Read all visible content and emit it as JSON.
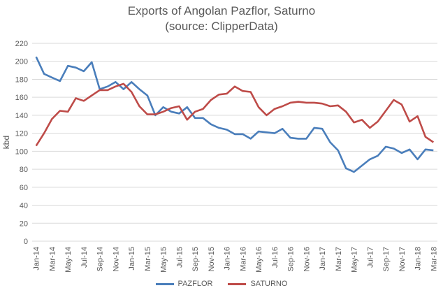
{
  "chart_data": {
    "type": "line",
    "title": "Exports of Angolan Pazflor, Saturno",
    "subtitle": "(source: ClipperData)",
    "ylabel": "kbd",
    "xlabel": "",
    "ylim": [
      0,
      220
    ],
    "yticks": [
      "0",
      "20",
      "40",
      "60",
      "80",
      "100",
      "120",
      "140",
      "160",
      "180",
      "200",
      "220"
    ],
    "x": [
      "Jan-14",
      "Feb-14",
      "Mar-14",
      "Apr-14",
      "May-14",
      "Jun-14",
      "Jul-14",
      "Aug-14",
      "Sep-14",
      "Oct-14",
      "Nov-14",
      "Dec-14",
      "Jan-15",
      "Feb-15",
      "Mar-15",
      "Apr-15",
      "May-15",
      "Jun-15",
      "Jul-15",
      "Aug-15",
      "Sep-15",
      "Oct-15",
      "Nov-15",
      "Dec-15",
      "Jan-16",
      "Feb-16",
      "Mar-16",
      "Apr-16",
      "May-16",
      "Jun-16",
      "Jul-16",
      "Aug-16",
      "Sep-16",
      "Oct-16",
      "Nov-16",
      "Dec-16",
      "Jan-17",
      "Feb-17",
      "Mar-17",
      "Apr-17",
      "May-17",
      "Jun-17",
      "Jul-17",
      "Aug-17",
      "Sep-17",
      "Oct-17",
      "Nov-17",
      "Dec-17",
      "Jan-18",
      "Feb-18",
      "Mar-18"
    ],
    "xtick_labels": [
      "Jan-14",
      "",
      "Mar-14",
      "",
      "May-14",
      "",
      "Jul-14",
      "",
      "Sep-14",
      "",
      "Nov-14",
      "",
      "Jan-15",
      "",
      "Mar-15",
      "",
      "May-15",
      "",
      "Jul-15",
      "",
      "Sep-15",
      "",
      "Nov-15",
      "",
      "Jan-16",
      "",
      "Mar-16",
      "",
      "May-16",
      "",
      "Jul-16",
      "",
      "Sep-16",
      "",
      "Nov-16",
      "",
      "Jan-17",
      "",
      "Mar-17",
      "",
      "May-17",
      "",
      "Jul-17",
      "",
      "Sep-17",
      "",
      "Nov-17",
      "",
      "Jan-18",
      "",
      "Mar-18"
    ],
    "series": [
      {
        "name": "PAZFLOR",
        "color": "#4a7ebb",
        "values": [
          205,
          186,
          182,
          178,
          195,
          193,
          189,
          199,
          169,
          172,
          177,
          169,
          177,
          169,
          162,
          140,
          149,
          144,
          142,
          149,
          137,
          137,
          130,
          126,
          124,
          119,
          119,
          114,
          122,
          121,
          120,
          125,
          115,
          114,
          114,
          126,
          125,
          110,
          101,
          81,
          77,
          84,
          91,
          95,
          105,
          103,
          98,
          102,
          91,
          102,
          101
        ]
      },
      {
        "name": "SATURNO",
        "color": "#be4b48",
        "values": [
          106,
          120,
          136,
          145,
          144,
          159,
          156,
          162,
          168,
          168,
          172,
          175,
          166,
          150,
          141,
          141,
          144,
          148,
          150,
          135,
          144,
          147,
          157,
          163,
          164,
          172,
          167,
          166,
          149,
          140,
          147,
          150,
          154,
          155,
          154,
          154,
          153,
          150,
          151,
          144,
          132,
          135,
          126,
          133,
          145,
          157,
          152,
          133,
          139,
          116,
          110
        ]
      }
    ],
    "legend_position": "bottom",
    "grid": true
  }
}
